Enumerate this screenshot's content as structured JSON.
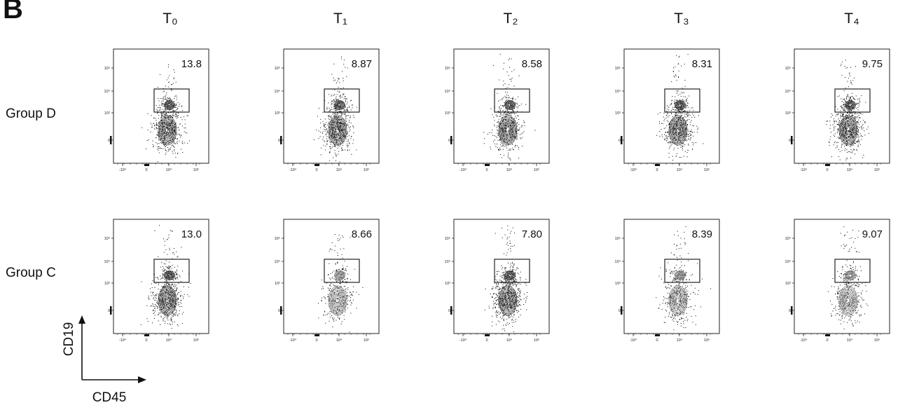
{
  "panel_label": "B",
  "x_axis_label": "CD45",
  "y_axis_label": "CD19",
  "x_ticks": [
    "-10⁴",
    "0",
    "10⁴",
    "10⁶"
  ],
  "y_ticks": [
    "10⁵",
    "10⁴",
    "10³",
    "0"
  ],
  "columns": [
    "T₀",
    "T₁",
    "T₂",
    "T₃",
    "T₄"
  ],
  "rows": [
    "Group D",
    "Group C"
  ],
  "colors": {
    "ink": "#111111",
    "contour": "#666666",
    "dense": "#000000"
  },
  "chart_data": {
    "type": "table",
    "cell_type": "flow-cytometry-contour-plot",
    "xlabel": "CD45",
    "ylabel": "CD19",
    "columns": [
      "T₀",
      "T₁",
      "T₂",
      "T₃",
      "T₄"
    ],
    "rows": [
      "Group D",
      "Group C"
    ],
    "gated_percent": [
      [
        "13.8",
        "8.87",
        "8.58",
        "8.31",
        "9.75"
      ],
      [
        "13.0",
        "8.66",
        "7.80",
        "8.39",
        "9.07"
      ]
    ]
  }
}
